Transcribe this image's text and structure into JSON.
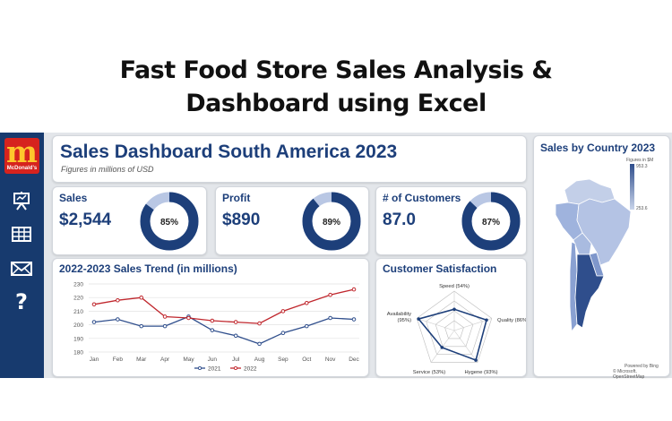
{
  "banner": {
    "line1": "Fast Food Store Sales Analysis &",
    "line2": "Dashboard using Excel"
  },
  "sidebar": {
    "logo_brand": "McDonald's",
    "icons": [
      "presentation-icon",
      "table-icon",
      "mail-icon",
      "help-icon"
    ]
  },
  "header": {
    "title": "Sales Dashboard South America 2023",
    "subtitle": "Figures in millions of USD"
  },
  "kpis": [
    {
      "label": "Sales",
      "value": "$2,544",
      "percent": 85,
      "percent_label": "85%"
    },
    {
      "label": "Profit",
      "value": "$890",
      "percent": 89,
      "percent_label": "89%"
    },
    {
      "label": "# of Customers",
      "value": "87.0",
      "percent": 87,
      "percent_label": "87%"
    }
  ],
  "colors": {
    "navy": "#1d3f7a",
    "ring_light": "#b9c7e4",
    "line_2021": "#2f4e8c",
    "line_2022": "#c0272d",
    "sidebar": "#173a6e"
  },
  "chart_data": [
    {
      "type": "line",
      "title": "2022-2023 Sales Trend (in millions)",
      "categories": [
        "Jan",
        "Feb",
        "Mar",
        "Apr",
        "May",
        "Jun",
        "Jul",
        "Aug",
        "Sep",
        "Oct",
        "Nov",
        "Dec"
      ],
      "series": [
        {
          "name": "2021",
          "values": [
            202,
            204,
            199,
            199,
            206,
            196,
            192,
            186,
            194,
            199,
            205,
            204
          ]
        },
        {
          "name": "2022",
          "values": [
            215,
            218,
            220,
            206,
            205,
            203,
            202,
            201,
            210,
            216,
            222,
            226
          ]
        }
      ],
      "yticks": [
        "180",
        "190",
        "200",
        "210",
        "220",
        "230"
      ],
      "ylim": [
        180,
        230
      ],
      "legend_position": "bottom",
      "grid": true
    },
    {
      "type": "radar",
      "title": "Customer Satisfaction",
      "axes": [
        {
          "label": "Speed (54%)",
          "value": 54
        },
        {
          "label": "Quality (86%)",
          "value": 86
        },
        {
          "label": "Hygene (93%)",
          "value": 93
        },
        {
          "label": "Service (53%)",
          "value": 53
        },
        {
          "label": "Availability (95%)",
          "value": 95
        }
      ],
      "max": 100
    }
  ],
  "map": {
    "title": "Sales by Country 2023",
    "legend_title": "Figures in $M",
    "legend_max": "953.3",
    "legend_min": "253.6",
    "credit_line1": "Powered by Bing",
    "credit_line2": "© Microsoft, OpenStreetMap"
  }
}
